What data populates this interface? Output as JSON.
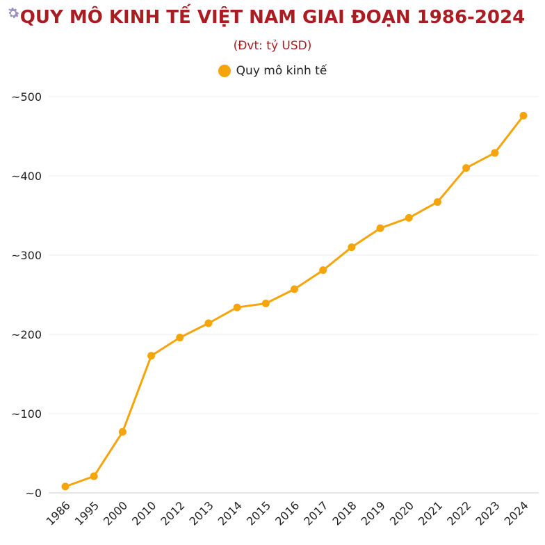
{
  "chart_data": {
    "type": "line",
    "title": "QUY MÔ KINH TẾ VIỆT NAM GIAI ĐOẠN 1986-2024",
    "subtitle": "(Đvt: tỷ USD)",
    "categories": [
      "1986",
      "1995",
      "2000",
      "2010",
      "2012",
      "2013",
      "2014",
      "2015",
      "2016",
      "2017",
      "2018",
      "2019",
      "2020",
      "2021",
      "2022",
      "2023",
      "2024"
    ],
    "series": [
      {
        "name": "Quy mô kinh tế",
        "color": "#f5a50a",
        "values": [
          8,
          21,
          77,
          173,
          196,
          214,
          234,
          239,
          257,
          281,
          310,
          334,
          347,
          367,
          410,
          429,
          476
        ]
      }
    ],
    "yticks": [
      "~0",
      "~100",
      "~200",
      "~300",
      "~400",
      "~500"
    ],
    "ylim": [
      0,
      500
    ],
    "grid": true,
    "legend": "top"
  },
  "colors": {
    "title": "#a91d22",
    "line": "#f5a50a",
    "grid": "#ececec"
  },
  "icons": {
    "corner": "gear-icon"
  }
}
